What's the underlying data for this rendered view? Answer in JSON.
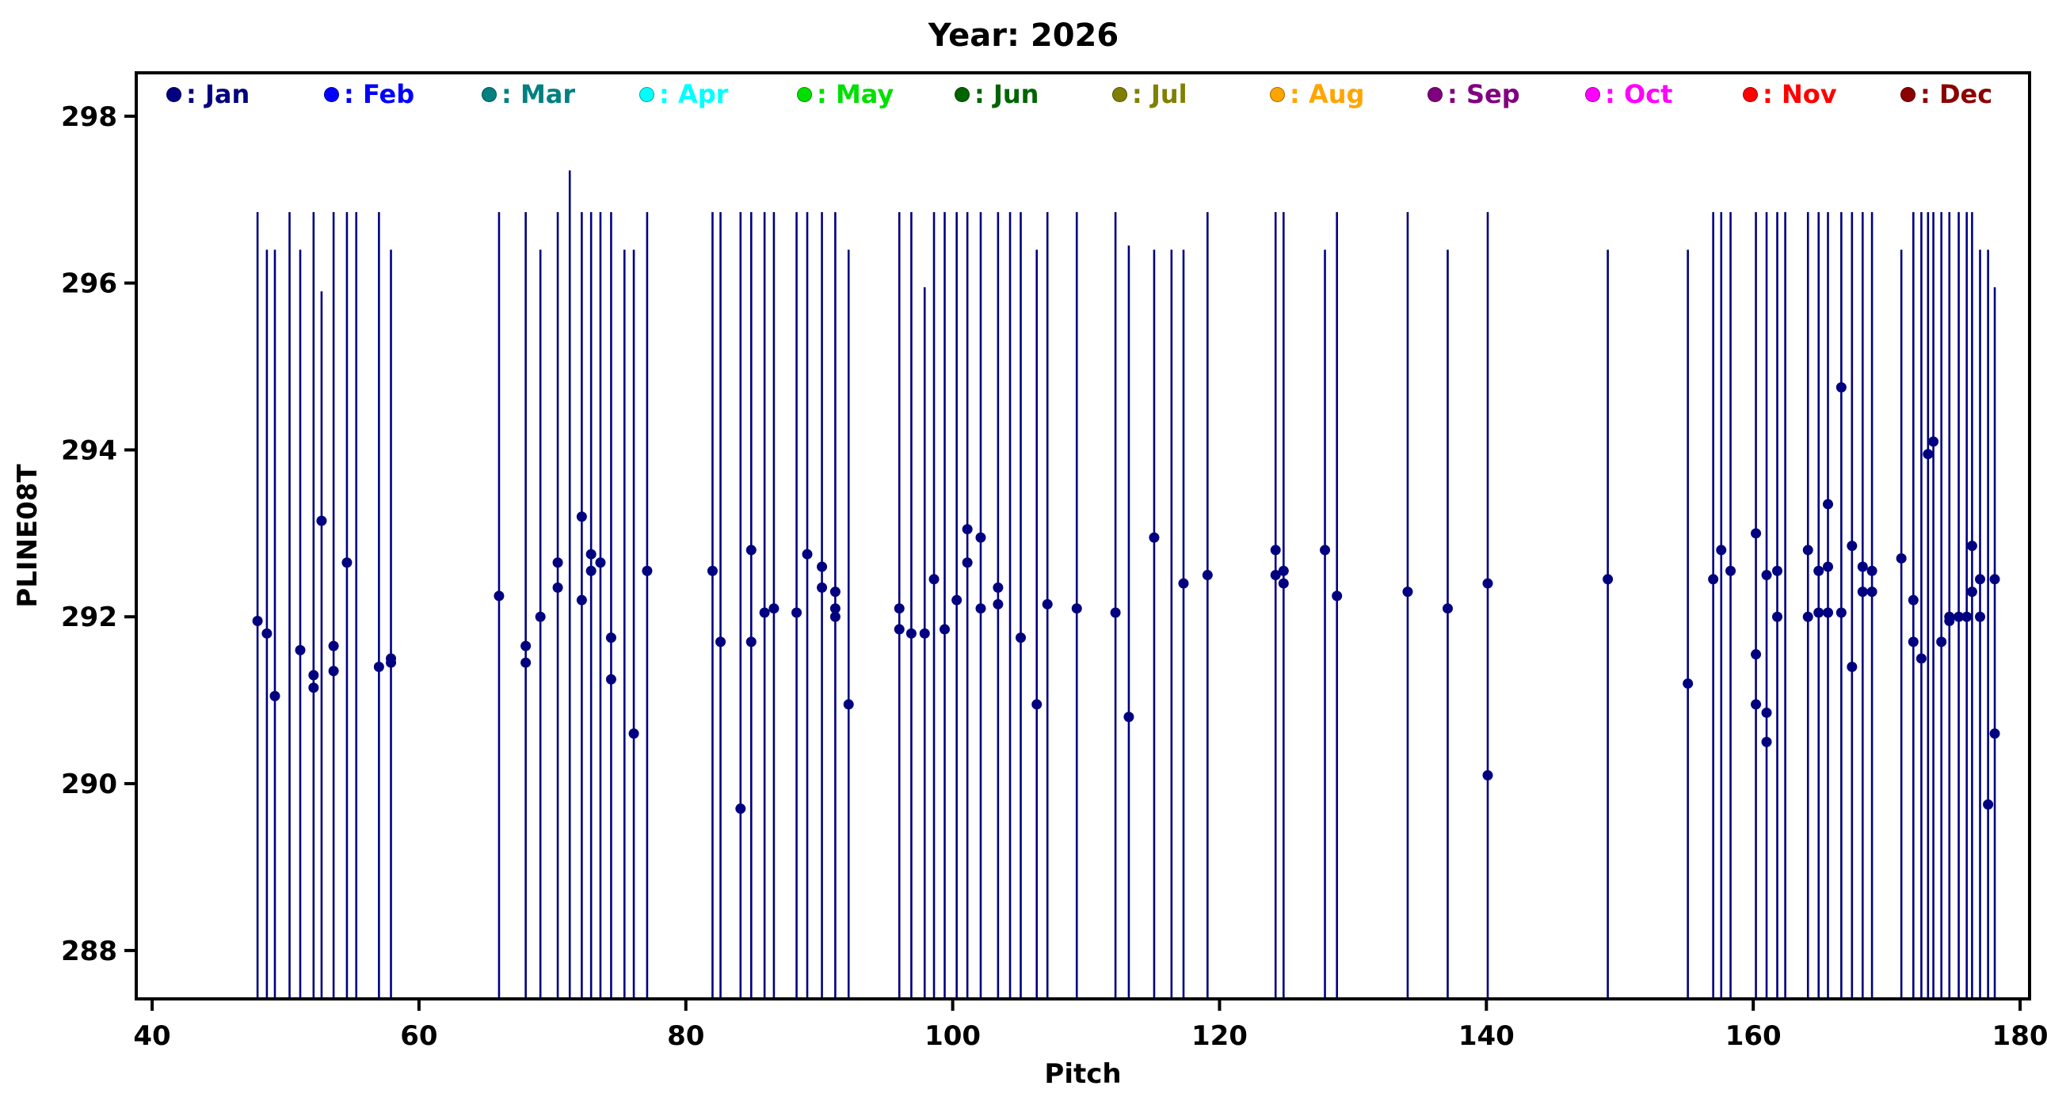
{
  "title": "Year: 2026",
  "chart_data": {
    "type": "scatter",
    "title": "Year: 2026",
    "xlabel": "Pitch",
    "ylabel": "PLINE08T",
    "xlim": [
      38.81,
      180.71
    ],
    "ylim": [
      287.42,
      298.52
    ],
    "xticks": [
      40,
      60,
      80,
      100,
      120,
      140,
      160,
      180
    ],
    "yticks": [
      288,
      290,
      292,
      294,
      296,
      298
    ],
    "grid": false,
    "legend_position": "top-inside",
    "legend_separator": ": ",
    "series_color": "#000080",
    "legend": [
      {
        "label": "Jan",
        "color": "#000080"
      },
      {
        "label": "Feb",
        "color": "#0000ff"
      },
      {
        "label": "Mar",
        "color": "#008080"
      },
      {
        "label": "Apr",
        "color": "#00ffff"
      },
      {
        "label": "May",
        "color": "#00e000"
      },
      {
        "label": "Jun",
        "color": "#006400"
      },
      {
        "label": "Jul",
        "color": "#808000"
      },
      {
        "label": "Aug",
        "color": "#ffa500"
      },
      {
        "label": "Sep",
        "color": "#800080"
      },
      {
        "label": "Oct",
        "color": "#ff00ff"
      },
      {
        "label": "Nov",
        "color": "#ff0000"
      },
      {
        "label": "Dec",
        "color": "#8b0000"
      }
    ],
    "stems_format": [
      "x",
      "line_top",
      "marker_values"
    ],
    "stems": [
      [
        47.9,
        296.85,
        [
          291.95
        ]
      ],
      [
        48.6,
        296.4,
        [
          291.8
        ]
      ],
      [
        49.2,
        296.4,
        [
          291.05
        ]
      ],
      [
        50.3,
        296.85,
        []
      ],
      [
        51.1,
        296.4,
        [
          291.6
        ]
      ],
      [
        52.1,
        296.85,
        [
          291.3,
          291.15
        ]
      ],
      [
        52.7,
        295.9,
        [
          293.15
        ]
      ],
      [
        53.6,
        296.85,
        [
          291.65,
          291.35
        ]
      ],
      [
        54.6,
        296.85,
        [
          292.65
        ]
      ],
      [
        55.3,
        296.85,
        []
      ],
      [
        57.0,
        296.85,
        [
          291.4
        ]
      ],
      [
        57.9,
        296.4,
        [
          291.45,
          291.5
        ]
      ],
      [
        66.0,
        296.85,
        [
          292.25
        ]
      ],
      [
        68.0,
        296.85,
        [
          291.65,
          291.45
        ]
      ],
      [
        69.1,
        296.4,
        [
          292.0
        ]
      ],
      [
        70.4,
        296.85,
        [
          292.65,
          292.35
        ]
      ],
      [
        71.3,
        297.35,
        []
      ],
      [
        72.2,
        296.85,
        [
          293.2,
          292.2
        ]
      ],
      [
        72.9,
        296.85,
        [
          292.75,
          292.55
        ]
      ],
      [
        73.6,
        296.85,
        [
          292.65
        ]
      ],
      [
        74.4,
        296.85,
        [
          291.75,
          291.25
        ]
      ],
      [
        75.4,
        296.4,
        []
      ],
      [
        76.1,
        296.4,
        [
          290.6
        ]
      ],
      [
        77.1,
        296.85,
        [
          292.55
        ]
      ],
      [
        82.0,
        296.85,
        [
          292.55
        ]
      ],
      [
        82.6,
        296.85,
        [
          291.7
        ]
      ],
      [
        84.1,
        296.85,
        [
          289.7
        ]
      ],
      [
        84.9,
        296.85,
        [
          292.8,
          291.7
        ]
      ],
      [
        85.9,
        296.85,
        [
          292.05
        ]
      ],
      [
        86.6,
        296.85,
        [
          292.1
        ]
      ],
      [
        88.3,
        296.85,
        [
          292.05
        ]
      ],
      [
        89.1,
        296.85,
        [
          292.75
        ]
      ],
      [
        90.2,
        296.85,
        [
          292.6,
          292.35
        ]
      ],
      [
        91.2,
        296.85,
        [
          292.3,
          292.1,
          292.0
        ]
      ],
      [
        92.2,
        296.4,
        [
          290.95
        ]
      ],
      [
        96.0,
        296.85,
        [
          292.1,
          291.85
        ]
      ],
      [
        96.9,
        296.85,
        [
          291.8
        ]
      ],
      [
        97.9,
        295.95,
        [
          291.8
        ]
      ],
      [
        98.6,
        296.85,
        [
          292.45
        ]
      ],
      [
        99.4,
        296.85,
        [
          291.85
        ]
      ],
      [
        100.3,
        296.85,
        [
          292.2
        ]
      ],
      [
        101.1,
        296.85,
        [
          293.05,
          292.65
        ]
      ],
      [
        102.1,
        296.85,
        [
          292.95,
          292.1
        ]
      ],
      [
        103.4,
        296.85,
        [
          292.35,
          292.15
        ]
      ],
      [
        104.3,
        296.85,
        []
      ],
      [
        105.1,
        296.85,
        [
          291.75
        ]
      ],
      [
        106.3,
        296.4,
        [
          290.95
        ]
      ],
      [
        107.1,
        296.85,
        [
          292.15
        ]
      ],
      [
        109.3,
        296.85,
        [
          292.1
        ]
      ],
      [
        112.2,
        296.85,
        [
          292.05
        ]
      ],
      [
        113.2,
        296.45,
        [
          290.8
        ]
      ],
      [
        115.1,
        296.4,
        [
          292.95
        ]
      ],
      [
        116.4,
        296.4,
        []
      ],
      [
        117.3,
        296.4,
        [
          292.4
        ]
      ],
      [
        119.1,
        296.85,
        [
          292.5
        ]
      ],
      [
        124.2,
        296.85,
        [
          292.8,
          292.5
        ]
      ],
      [
        124.8,
        296.85,
        [
          292.55,
          292.4
        ]
      ],
      [
        127.9,
        296.4,
        [
          292.8
        ]
      ],
      [
        128.8,
        296.85,
        [
          292.25
        ]
      ],
      [
        134.1,
        296.85,
        [
          292.3
        ]
      ],
      [
        137.1,
        296.4,
        [
          292.1
        ]
      ],
      [
        140.1,
        296.85,
        [
          292.4,
          290.1
        ]
      ],
      [
        149.1,
        296.4,
        [
          292.45
        ]
      ],
      [
        155.1,
        296.4,
        [
          291.2
        ]
      ],
      [
        157.0,
        296.85,
        [
          292.45
        ]
      ],
      [
        157.6,
        296.85,
        [
          292.8
        ]
      ],
      [
        158.3,
        296.85,
        [
          292.55
        ]
      ],
      [
        160.2,
        296.85,
        [
          293.0,
          291.55,
          290.95
        ]
      ],
      [
        161.0,
        296.85,
        [
          292.5,
          290.85,
          290.5
        ]
      ],
      [
        161.8,
        296.85,
        [
          292.55,
          292.0
        ]
      ],
      [
        162.4,
        296.85,
        []
      ],
      [
        164.1,
        296.85,
        [
          292.8,
          292.0
        ]
      ],
      [
        164.9,
        296.85,
        [
          292.55,
          292.05
        ]
      ],
      [
        165.6,
        296.85,
        [
          293.35,
          292.6,
          292.05
        ]
      ],
      [
        166.6,
        296.85,
        [
          294.75,
          292.05
        ]
      ],
      [
        167.4,
        296.85,
        [
          292.85,
          291.4
        ]
      ],
      [
        168.2,
        296.85,
        [
          292.6,
          292.3
        ]
      ],
      [
        168.9,
        296.85,
        [
          292.55,
          292.3
        ]
      ],
      [
        171.1,
        296.4,
        [
          292.7
        ]
      ],
      [
        172.0,
        296.85,
        [
          292.2,
          291.7
        ]
      ],
      [
        172.6,
        296.85,
        [
          291.5
        ]
      ],
      [
        173.1,
        296.85,
        [
          293.95
        ]
      ],
      [
        173.5,
        296.85,
        [
          294.1
        ]
      ],
      [
        174.1,
        296.85,
        [
          291.7
        ]
      ],
      [
        174.7,
        296.85,
        [
          292.0,
          291.95
        ]
      ],
      [
        175.4,
        296.85,
        [
          292.0
        ]
      ],
      [
        176.0,
        296.85,
        [
          292.0
        ]
      ],
      [
        176.4,
        296.85,
        [
          292.85,
          292.3
        ]
      ],
      [
        177.0,
        296.4,
        [
          292.45,
          292.0
        ]
      ],
      [
        177.6,
        296.4,
        [
          289.75
        ]
      ],
      [
        178.1,
        295.95,
        [
          290.6,
          292.45
        ]
      ]
    ]
  }
}
